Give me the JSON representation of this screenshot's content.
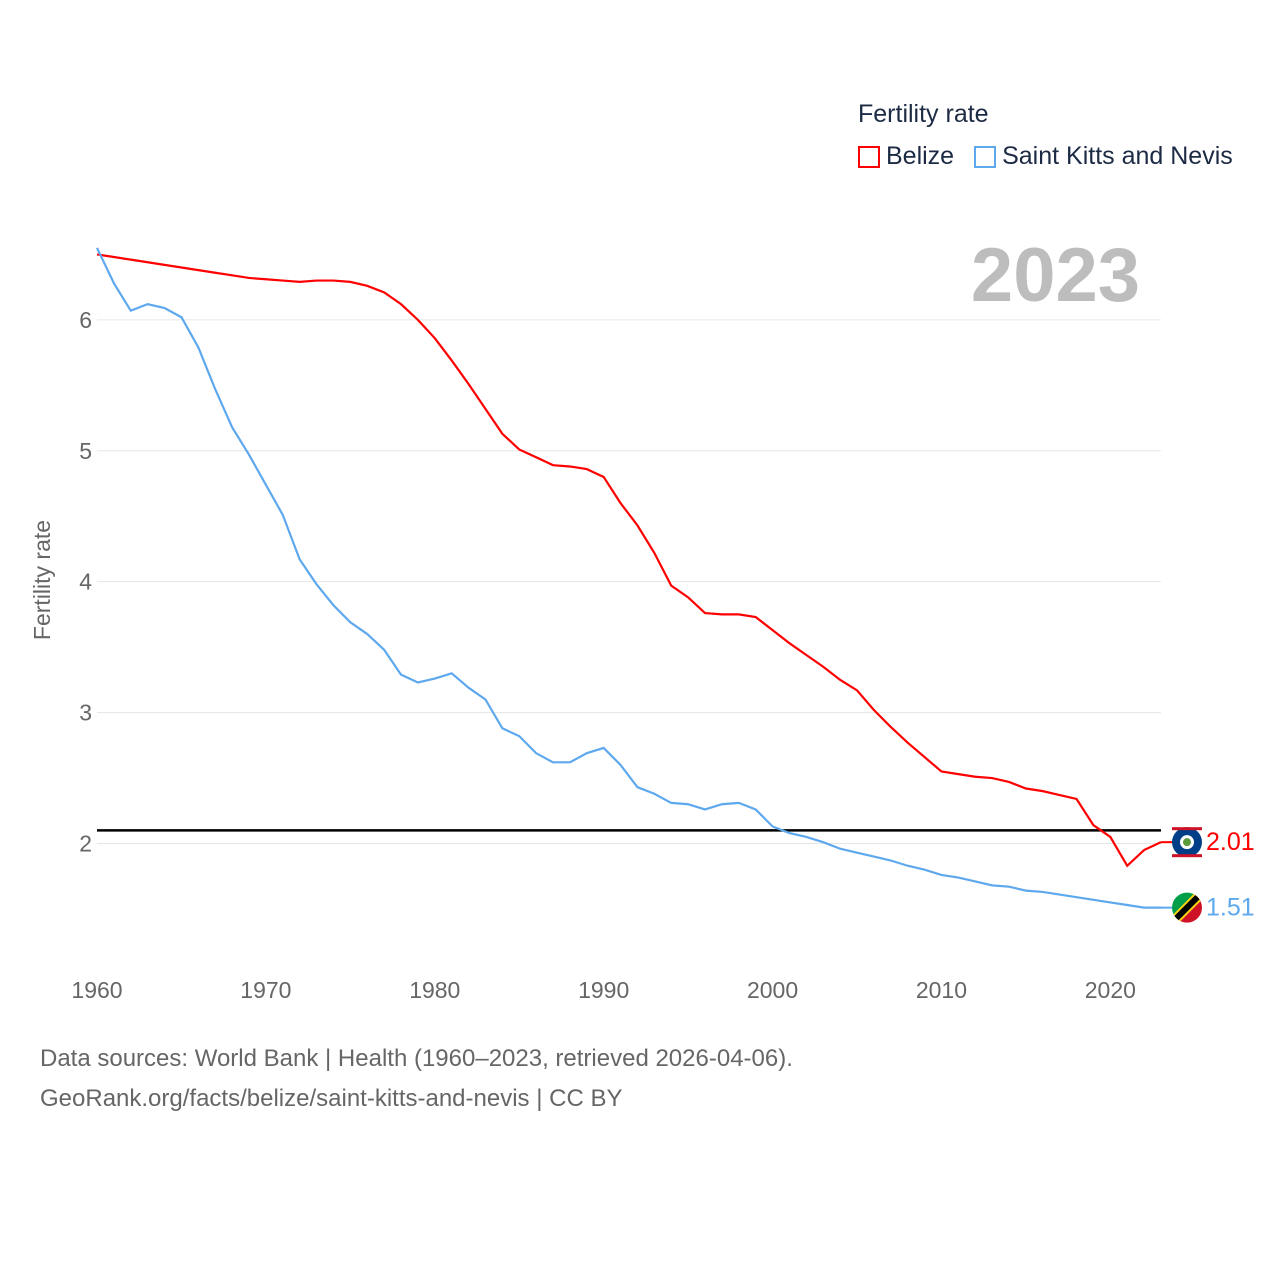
{
  "chart_data": {
    "type": "line",
    "title": "Fertility rate",
    "ylabel": "Fertility rate",
    "xlabel": "",
    "year_label": "2023",
    "xlim": [
      1960,
      2023
    ],
    "ylim": [
      1.11,
      6.61
    ],
    "yticks": [
      2,
      3,
      4,
      5,
      6
    ],
    "xticks": [
      1960,
      1970,
      1980,
      1990,
      2000,
      2010,
      2020
    ],
    "reference_line": 2.1,
    "grid": true,
    "legend_position": "top-right",
    "series": [
      {
        "name": "Belize",
        "color": "#ff0000",
        "end_label": "2.01",
        "flag": "belize-flag-icon",
        "values": [
          6.5,
          6.48,
          6.46,
          6.44,
          6.42,
          6.4,
          6.38,
          6.36,
          6.34,
          6.32,
          6.31,
          6.3,
          6.29,
          6.3,
          6.3,
          6.29,
          6.26,
          6.21,
          6.12,
          6.0,
          5.86,
          5.69,
          5.51,
          5.32,
          5.13,
          5.01,
          4.95,
          4.89,
          4.88,
          4.86,
          4.8,
          4.6,
          4.43,
          4.22,
          3.97,
          3.88,
          3.76,
          3.75,
          3.75,
          3.73,
          3.63,
          3.53,
          3.44,
          3.35,
          3.25,
          3.17,
          3.02,
          2.89,
          2.77,
          2.66,
          2.55,
          2.53,
          2.51,
          2.5,
          2.47,
          2.42,
          2.4,
          2.37,
          2.34,
          2.14,
          2.05,
          1.83,
          1.95,
          2.01
        ]
      },
      {
        "name": "Saint Kitts and Nevis",
        "color": "#5ea8ee",
        "end_label": "1.51",
        "flag": "saint-kitts-and-nevis-flag-icon",
        "values": [
          6.55,
          6.28,
          6.07,
          6.12,
          6.09,
          6.02,
          5.79,
          5.47,
          5.18,
          4.97,
          4.74,
          4.51,
          4.17,
          3.98,
          3.82,
          3.69,
          3.6,
          3.48,
          3.29,
          3.23,
          3.26,
          3.3,
          3.19,
          3.1,
          2.88,
          2.82,
          2.69,
          2.62,
          2.62,
          2.69,
          2.73,
          2.6,
          2.43,
          2.38,
          2.31,
          2.3,
          2.26,
          2.3,
          2.31,
          2.26,
          2.13,
          2.08,
          2.05,
          2.01,
          1.96,
          1.93,
          1.9,
          1.87,
          1.83,
          1.8,
          1.76,
          1.74,
          1.71,
          1.68,
          1.67,
          1.64,
          1.63,
          1.61,
          1.59,
          1.57,
          1.55,
          1.53,
          1.51,
          1.51
        ]
      }
    ]
  },
  "footer": {
    "line1": "Data sources: World Bank | Health (1960–2023, retrieved 2026-04-06).",
    "line2": "GeoRank.org/facts/belize/saint-kitts-and-nevis | CC BY"
  }
}
